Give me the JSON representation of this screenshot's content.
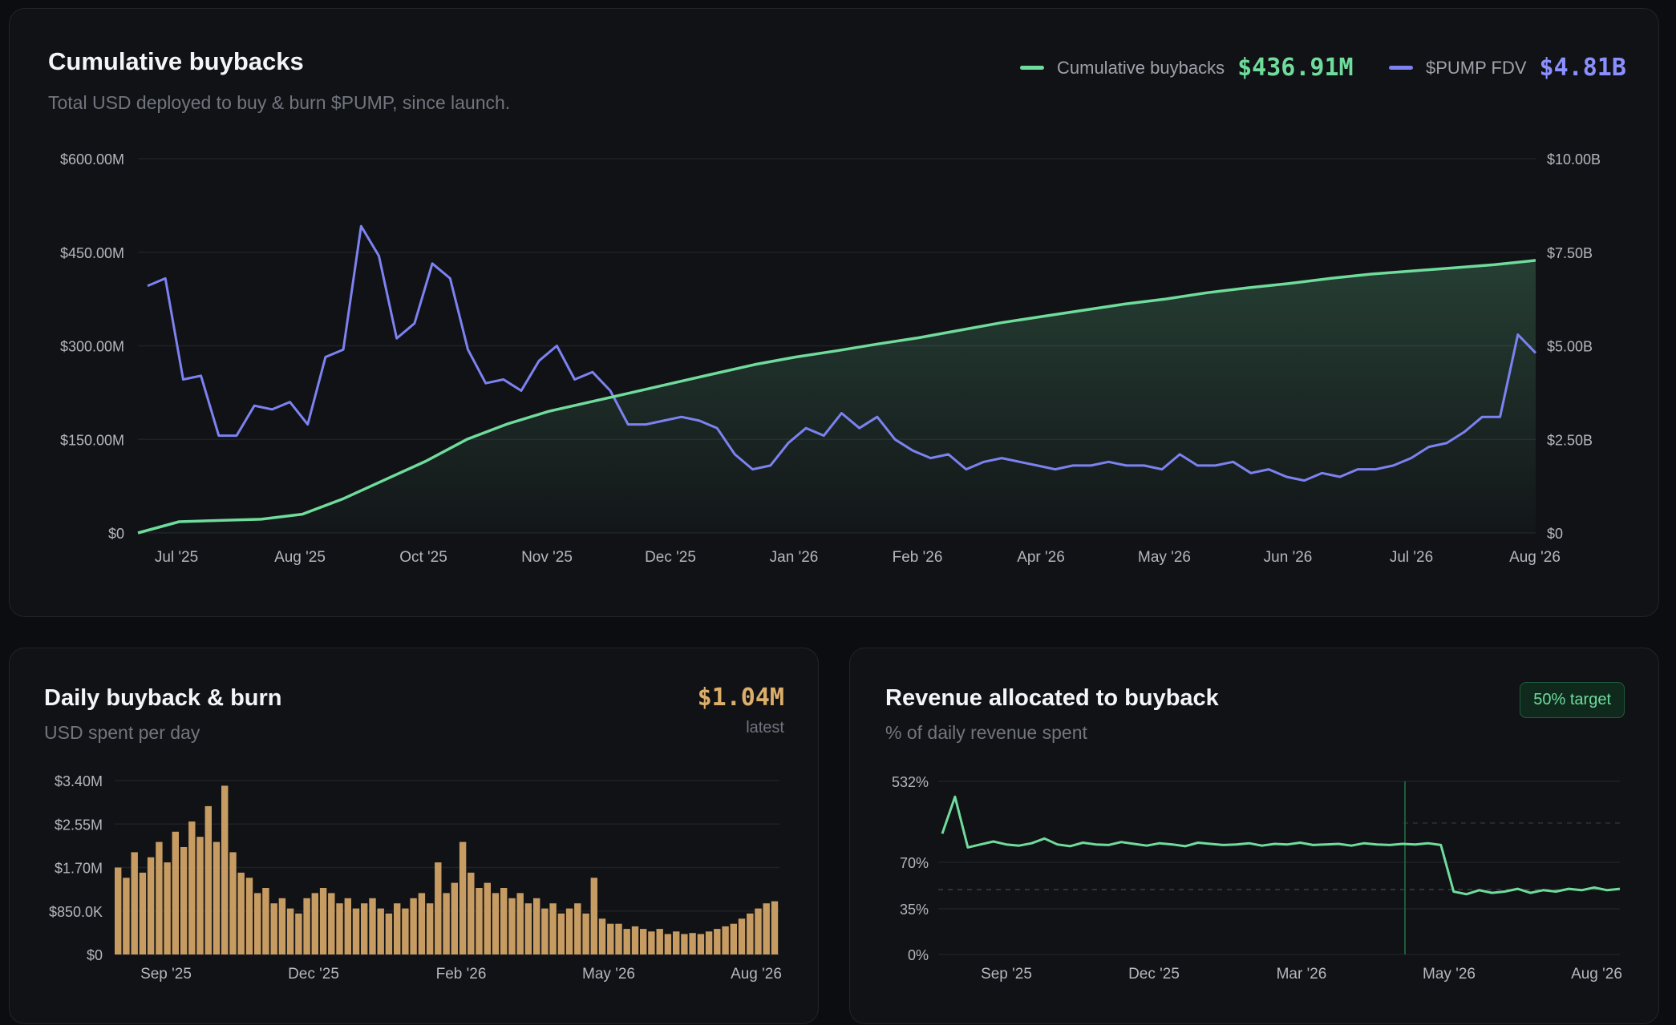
{
  "colors": {
    "green": "#6fdc9c",
    "purple": "#7c82f0",
    "gold": "#dcae6a",
    "axis": "#b4b7be",
    "grid": "#1f2126"
  },
  "main": {
    "title": "Cumulative buybacks",
    "subtitle": "Total USD deployed to buy & burn $PUMP, since launch.",
    "legend": [
      {
        "label": "Cumulative buybacks",
        "value": "$436.91M",
        "color": "#6fdc9c"
      },
      {
        "label": "$PUMP FDV",
        "value": "$4.81B",
        "color": "#7c82f0"
      }
    ]
  },
  "daily": {
    "title": "Daily buyback & burn",
    "subtitle": "USD spent per day",
    "value": "$1.04M",
    "value_label": "latest"
  },
  "revenue": {
    "title": "Revenue allocated to buyback",
    "subtitle": "% of daily revenue spent",
    "badge": "50% target"
  },
  "chart_data": [
    {
      "type": "line",
      "title": "Cumulative buybacks",
      "x_labels": [
        "Jul '25",
        "Aug '25",
        "Oct '25",
        "Nov '25",
        "Dec '25",
        "Jan '26",
        "Feb '26",
        "Apr '26",
        "May '26",
        "Jun '26",
        "Jul '26",
        "Aug '26"
      ],
      "y_left_ticks": [
        "$0",
        "$150.00M",
        "$300.00M",
        "$450.00M",
        "$600.00M"
      ],
      "y_right_ticks": [
        "$0",
        "$2.50B",
        "$5.00B",
        "$7.50B",
        "$10.00B"
      ],
      "y_left_range": [
        0,
        600
      ],
      "y_right_range": [
        0,
        10
      ],
      "grid": true,
      "legend_position": "top-right",
      "series": [
        {
          "name": "Cumulative buybacks",
          "axis": "left",
          "unit": "$M",
          "values": [
            0,
            18,
            20,
            22,
            30,
            55,
            85,
            115,
            150,
            175,
            195,
            210,
            225,
            240,
            255,
            270,
            282,
            292,
            303,
            313,
            325,
            337,
            347,
            357,
            367,
            375,
            385,
            393,
            400,
            408,
            415,
            420,
            425,
            430,
            437
          ]
        },
        {
          "name": "$PUMP FDV",
          "axis": "right",
          "unit": "$B",
          "values": [
            6.6,
            6.8,
            4.1,
            4.2,
            2.6,
            2.6,
            3.4,
            3.3,
            3.5,
            2.9,
            4.7,
            4.9,
            8.2,
            7.4,
            5.2,
            5.6,
            7.2,
            6.8,
            4.9,
            4.0,
            4.1,
            3.8,
            4.6,
            5.0,
            4.1,
            4.3,
            3.8,
            2.9,
            2.9,
            3.0,
            3.1,
            3.0,
            2.8,
            2.1,
            1.7,
            1.8,
            2.4,
            2.8,
            2.6,
            3.2,
            2.8,
            3.1,
            2.5,
            2.2,
            2.0,
            2.1,
            1.7,
            1.9,
            2.0,
            1.9,
            1.8,
            1.7,
            1.8,
            1.8,
            1.9,
            1.8,
            1.8,
            1.7,
            2.1,
            1.8,
            1.8,
            1.9,
            1.6,
            1.7,
            1.5,
            1.4,
            1.6,
            1.5,
            1.7,
            1.7,
            1.8,
            2.0,
            2.3,
            2.4,
            2.7,
            3.1,
            3.1,
            5.3,
            4.81
          ]
        }
      ]
    },
    {
      "type": "bar",
      "title": "Daily buyback & burn",
      "x_labels": [
        "Sep '25",
        "Dec '25",
        "Feb '26",
        "May '26",
        "Aug '26"
      ],
      "y_ticks": [
        "$0",
        "$850.0K",
        "$1.70M",
        "$2.55M",
        "$3.40M"
      ],
      "y_range": [
        0,
        3.4
      ],
      "unit": "$M",
      "values": [
        1.7,
        1.5,
        2.0,
        1.6,
        1.9,
        2.2,
        1.8,
        2.4,
        2.1,
        2.6,
        2.3,
        2.9,
        2.2,
        3.3,
        2.0,
        1.6,
        1.5,
        1.2,
        1.3,
        1.0,
        1.1,
        0.9,
        0.8,
        1.1,
        1.2,
        1.3,
        1.2,
        1.0,
        1.1,
        0.9,
        1.0,
        1.1,
        0.9,
        0.8,
        1.0,
        0.9,
        1.1,
        1.2,
        1.0,
        1.8,
        1.2,
        1.4,
        2.2,
        1.6,
        1.3,
        1.4,
        1.2,
        1.3,
        1.1,
        1.2,
        1.0,
        1.1,
        0.9,
        1.0,
        0.8,
        0.9,
        1.0,
        0.8,
        1.5,
        0.7,
        0.6,
        0.6,
        0.5,
        0.55,
        0.5,
        0.45,
        0.5,
        0.4,
        0.45,
        0.4,
        0.42,
        0.4,
        0.45,
        0.5,
        0.55,
        0.6,
        0.7,
        0.8,
        0.9,
        1.0,
        1.04
      ]
    },
    {
      "type": "line",
      "title": "Revenue allocated to buyback",
      "x_labels": [
        "Sep '25",
        "Dec '25",
        "Mar '26",
        "May '26",
        "Aug '26"
      ],
      "y_ticks": [
        "0%",
        "35%",
        "70%",
        "532%"
      ],
      "target": "50%",
      "grid": true,
      "series": [
        {
          "name": "Revenue allocated to buyback",
          "unit": "%",
          "values": [
            118,
            180,
            95,
            100,
            105,
            100,
            98,
            102,
            110,
            100,
            97,
            103,
            100,
            99,
            104,
            101,
            98,
            102,
            100,
            97,
            103,
            101,
            99,
            100,
            102,
            98,
            101,
            100,
            103,
            99,
            100,
            101,
            98,
            102,
            100,
            99,
            101,
            100,
            102,
            99,
            48,
            46,
            49,
            47,
            48,
            50,
            47,
            49,
            48,
            50,
            49,
            51,
            49,
            50
          ]
        }
      ]
    }
  ]
}
